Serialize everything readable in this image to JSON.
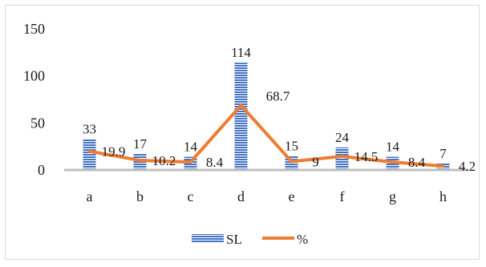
{
  "chart_data": {
    "type": "bar",
    "categories": [
      "a",
      "b",
      "c",
      "d",
      "e",
      "f",
      "g",
      "h"
    ],
    "series": [
      {
        "name": "SL",
        "kind": "bar",
        "values": [
          33,
          17,
          14,
          114,
          15,
          24,
          14,
          7
        ],
        "color": "#4472c4"
      },
      {
        "name": "%",
        "kind": "line",
        "values": [
          19.9,
          10.2,
          8.4,
          68.7,
          9,
          14.5,
          8.4,
          4.2
        ],
        "color": "#ed7d31"
      }
    ],
    "y_ticks": [
      "0",
      "50",
      "100",
      "150"
    ],
    "ylim": [
      0,
      150
    ],
    "grid": false,
    "legend_position": "bottom",
    "title": "",
    "xlabel": "",
    "ylabel": ""
  }
}
